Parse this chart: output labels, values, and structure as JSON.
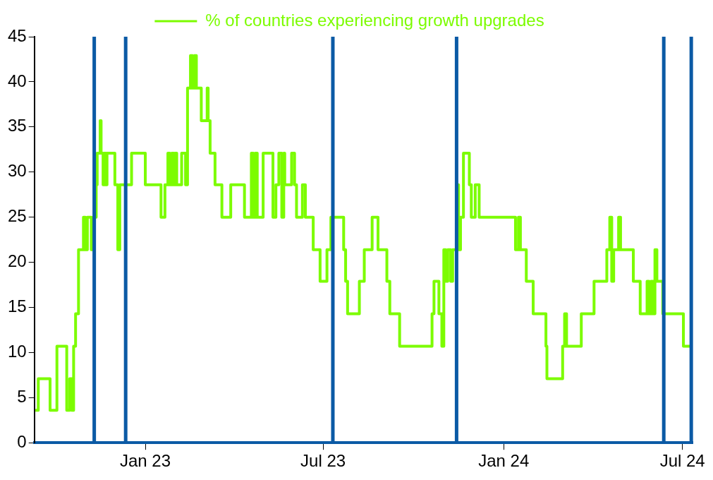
{
  "chart_data": {
    "type": "step",
    "legend": "top",
    "grid": false,
    "marker": "none",
    "line_style": "solid",
    "xlim": [
      "2022-09-10",
      "2024-07-12"
    ],
    "xticks": [
      {
        "value": "2023-01-01",
        "label": "Jan 23"
      },
      {
        "value": "2023-07-01",
        "label": "Jul 23"
      },
      {
        "value": "2024-01-01",
        "label": "Jan 24"
      },
      {
        "value": "2024-07-01",
        "label": "Jul 24"
      }
    ],
    "ylim": [
      0,
      45
    ],
    "yticks": [
      0,
      5,
      10,
      15,
      20,
      25,
      30,
      35,
      40,
      45
    ],
    "ref_lines": [
      {
        "axis": "x",
        "value": "2022-11-10",
        "color": "#0b5aa5"
      },
      {
        "axis": "x",
        "value": "2022-12-12",
        "color": "#0b5aa5"
      },
      {
        "axis": "x",
        "value": "2023-07-11",
        "color": "#0b5aa5"
      },
      {
        "axis": "x",
        "value": "2023-11-14",
        "color": "#0b5aa5"
      },
      {
        "axis": "x",
        "value": "2024-06-12",
        "color": "#0b5aa5"
      },
      {
        "axis": "x",
        "value": "2024-07-10",
        "color": "#0b5aa5"
      }
    ],
    "series": [
      {
        "name": "% of countries experiencing growth upgrades",
        "color": "#7cfc00",
        "x": [
          "2022-09-11",
          "2022-09-14",
          "2022-09-26",
          "2022-10-03",
          "2022-10-13",
          "2022-10-16",
          "2022-10-18",
          "2022-10-20",
          "2022-10-22",
          "2022-10-25",
          "2022-10-30",
          "2022-11-01",
          "2022-11-03",
          "2022-11-07",
          "2022-11-09",
          "2022-11-12",
          "2022-11-13",
          "2022-11-16",
          "2022-11-17",
          "2022-11-19",
          "2022-11-20",
          "2022-11-22",
          "2022-11-23",
          "2022-12-01",
          "2022-12-04",
          "2022-12-06",
          "2022-12-18",
          "2023-01-01",
          "2023-01-17",
          "2023-01-21",
          "2023-01-24",
          "2023-01-26",
          "2023-01-28",
          "2023-01-30",
          "2023-01-31",
          "2023-02-02",
          "2023-02-07",
          "2023-02-11",
          "2023-02-13",
          "2023-02-16",
          "2023-02-18",
          "2023-02-20",
          "2023-02-22",
          "2023-02-27",
          "2023-03-05",
          "2023-03-06",
          "2023-03-08",
          "2023-03-13",
          "2023-03-20",
          "2023-03-29",
          "2023-04-12",
          "2023-04-19",
          "2023-04-21",
          "2023-04-23",
          "2023-04-25",
          "2023-05-01",
          "2023-05-11",
          "2023-05-14",
          "2023-05-17",
          "2023-05-20",
          "2023-05-22",
          "2023-05-23",
          "2023-05-30",
          "2023-06-02",
          "2023-06-04",
          "2023-06-10",
          "2023-06-13",
          "2023-06-21",
          "2023-06-28",
          "2023-07-05",
          "2023-07-09",
          "2023-07-22",
          "2023-07-24",
          "2023-07-26",
          "2023-08-07",
          "2023-08-12",
          "2023-08-20",
          "2023-08-26",
          "2023-09-04",
          "2023-09-07",
          "2023-09-17",
          "2023-10-20",
          "2023-10-22",
          "2023-10-27",
          "2023-10-30",
          "2023-11-01",
          "2023-11-03",
          "2023-11-05",
          "2023-11-08",
          "2023-11-10",
          "2023-11-14",
          "2023-11-16",
          "2023-11-18",
          "2023-11-21",
          "2023-11-27",
          "2023-11-29",
          "2023-12-03",
          "2023-12-07",
          "2024-01-13",
          "2024-01-16",
          "2024-01-18",
          "2024-01-24",
          "2024-01-31",
          "2024-02-13",
          "2024-02-14",
          "2024-03-01",
          "2024-03-03",
          "2024-03-05",
          "2024-03-20",
          "2024-04-02",
          "2024-04-15",
          "2024-04-18",
          "2024-04-20",
          "2024-04-22",
          "2024-04-27",
          "2024-04-29",
          "2024-05-12",
          "2024-05-19",
          "2024-05-26",
          "2024-05-28",
          "2024-05-30",
          "2024-06-01",
          "2024-06-03",
          "2024-06-05",
          "2024-06-11",
          "2024-07-02",
          "2024-07-10"
        ],
        "values": [
          3.6,
          7.1,
          3.6,
          10.7,
          3.6,
          7.1,
          3.6,
          10.7,
          14.3,
          21.4,
          25,
          21.4,
          25,
          21.4,
          25,
          28.6,
          32.1,
          35.7,
          32.1,
          28.6,
          32.1,
          28.6,
          32.1,
          28.6,
          21.4,
          28.6,
          32.1,
          28.6,
          25,
          28.6,
          32.1,
          28.6,
          32.1,
          28.6,
          32.1,
          28.6,
          32.1,
          28.6,
          39.3,
          42.9,
          39.3,
          42.9,
          39.3,
          35.7,
          39.3,
          35.7,
          32.1,
          28.6,
          25,
          28.6,
          25,
          32.1,
          25,
          32.1,
          25,
          32.1,
          25,
          28.6,
          32.1,
          25,
          32.1,
          28.6,
          32.1,
          28.6,
          25,
          28.6,
          25,
          21.4,
          17.9,
          21.4,
          25,
          21.4,
          17.9,
          14.3,
          17.9,
          21.4,
          25,
          21.4,
          17.9,
          14.3,
          10.7,
          14.3,
          17.9,
          14.3,
          10.7,
          21.4,
          17.9,
          21.4,
          17.9,
          21.4,
          28.6,
          21.4,
          25,
          32.1,
          28.6,
          25,
          28.6,
          25,
          21.4,
          25,
          21.4,
          17.9,
          14.3,
          10.7,
          7.1,
          10.7,
          14.3,
          10.7,
          14.3,
          17.9,
          21.4,
          25,
          17.9,
          21.4,
          25,
          21.4,
          17.9,
          14.3,
          17.9,
          14.3,
          17.9,
          14.3,
          21.4,
          17.9,
          14.3,
          10.7,
          10.7
        ]
      }
    ]
  }
}
